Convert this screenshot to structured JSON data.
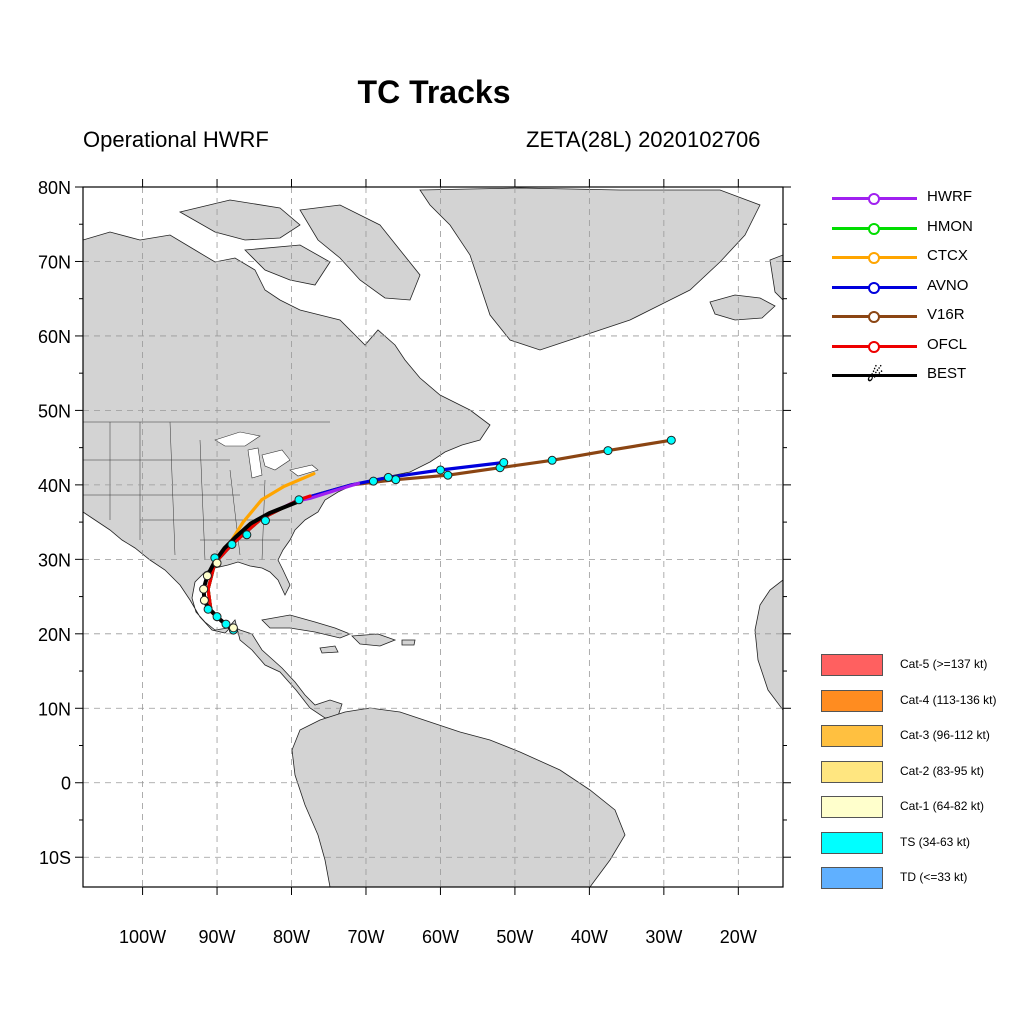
{
  "title": "TC Tracks",
  "subtitle_left": "Operational HWRF",
  "subtitle_right": "ZETA(28L) 2020102706",
  "axes": {
    "lat_labels": [
      "80N",
      "70N",
      "60N",
      "50N",
      "40N",
      "30N",
      "20N",
      "10N",
      "0",
      "10S"
    ],
    "lon_labels": [
      "100W",
      "90W",
      "80W",
      "70W",
      "60W",
      "50W",
      "40W",
      "30W",
      "20W"
    ],
    "lat_range": [
      -14,
      80
    ],
    "lon_range": [
      -108,
      -14
    ],
    "grid": true
  },
  "track_legend": [
    {
      "label": "HWRF",
      "color": "#a020f0"
    },
    {
      "label": "HMON",
      "color": "#00dd00"
    },
    {
      "label": "CTCX",
      "color": "#ffa500"
    },
    {
      "label": "AVNO",
      "color": "#0000dd"
    },
    {
      "label": "V16R",
      "color": "#8b4513"
    },
    {
      "label": "OFCL",
      "color": "#ee0000"
    },
    {
      "label": "BEST",
      "color": "#000000"
    }
  ],
  "intensity_legend": [
    {
      "label": "Cat-5 (>=137 kt)",
      "color": "#ff6060"
    },
    {
      "label": "Cat-4 (113-136 kt)",
      "color": "#ff8c20"
    },
    {
      "label": "Cat-3 (96-112 kt)",
      "color": "#ffc040"
    },
    {
      "label": "Cat-2 (83-95 kt)",
      "color": "#ffe680"
    },
    {
      "label": "Cat-1 (64-82 kt)",
      "color": "#ffffcc"
    },
    {
      "label": "TS (34-63 kt)",
      "color": "#00ffff"
    },
    {
      "label": "TD (<=33 kt)",
      "color": "#60b0ff"
    }
  ],
  "tracks": {
    "V16R": [
      [
        -88.5,
        21.0
      ],
      [
        -90.8,
        23.0
      ],
      [
        -91.2,
        26.0
      ],
      [
        -90.3,
        29.5
      ],
      [
        -88.0,
        32.0
      ],
      [
        -84.0,
        35.5
      ],
      [
        -79.0,
        38.0
      ],
      [
        -72.0,
        40.0
      ],
      [
        -66.0,
        40.7
      ],
      [
        -59.0,
        41.3
      ],
      [
        -52.0,
        42.3
      ],
      [
        -45.0,
        43.3
      ],
      [
        -37.5,
        44.6
      ],
      [
        -29.0,
        46.0
      ]
    ],
    "AVNO": [
      [
        -88.5,
        21.0
      ],
      [
        -90.8,
        23.0
      ],
      [
        -91.2,
        26.0
      ],
      [
        -90.3,
        29.5
      ],
      [
        -88.0,
        32.0
      ],
      [
        -84.0,
        35.5
      ],
      [
        -79.0,
        38.0
      ],
      [
        -72.0,
        40.0
      ],
      [
        -67.0,
        41.0
      ],
      [
        -60.0,
        42.0
      ],
      [
        -51.5,
        43.0
      ]
    ],
    "HWRF": [
      [
        -88.5,
        21.0
      ],
      [
        -90.8,
        23.0
      ],
      [
        -91.2,
        26.0
      ],
      [
        -90.3,
        29.5
      ],
      [
        -88.0,
        32.0
      ],
      [
        -84.0,
        35.5
      ],
      [
        -79.5,
        37.8
      ],
      [
        -77.5,
        38.2
      ],
      [
        -74.0,
        39.3
      ],
      [
        -71.0,
        40.2
      ]
    ],
    "CTCX": [
      [
        -88.5,
        21.0
      ],
      [
        -90.8,
        23.0
      ],
      [
        -91.2,
        26.0
      ],
      [
        -90.3,
        29.5
      ],
      [
        -88.5,
        31.8
      ],
      [
        -86.5,
        35.0
      ],
      [
        -84.0,
        38.0
      ],
      [
        -81.0,
        39.8
      ],
      [
        -77.0,
        41.5
      ]
    ],
    "OFCL": [
      [
        -88.5,
        21.0
      ],
      [
        -90.8,
        23.0
      ],
      [
        -91.2,
        26.0
      ],
      [
        -90.3,
        29.5
      ],
      [
        -88.0,
        32.0
      ],
      [
        -84.0,
        35.5
      ],
      [
        -79.0,
        38.0
      ],
      [
        -77.5,
        38.5
      ]
    ],
    "HMON": [
      [
        -88.5,
        21.0
      ],
      [
        -90.8,
        23.0
      ],
      [
        -91.2,
        26.0
      ],
      [
        -90.3,
        29.5
      ],
      [
        -88.0,
        32.0
      ],
      [
        -84.0,
        35.5
      ],
      [
        -79.0,
        38.0
      ]
    ],
    "BEST": [
      [
        -87.8,
        20.5
      ],
      [
        -88.8,
        21.2
      ],
      [
        -90.0,
        22.3
      ],
      [
        -91.2,
        23.5
      ],
      [
        -91.7,
        24.5
      ],
      [
        -91.8,
        26.0
      ],
      [
        -91.3,
        27.8
      ],
      [
        -90.3,
        29.7
      ],
      [
        -89.0,
        31.5
      ],
      [
        -87.5,
        33.0
      ],
      [
        -85.5,
        34.8
      ],
      [
        -83.0,
        36.2
      ],
      [
        -79.0,
        37.8
      ]
    ]
  },
  "cyan_markers": [
    [
      -29.0,
      46.0
    ],
    [
      -37.5,
      44.6
    ],
    [
      -45.0,
      43.3
    ],
    [
      -52.0,
      42.3
    ],
    [
      -59.0,
      41.3
    ],
    [
      -66.0,
      40.7
    ],
    [
      -51.5,
      43.0
    ],
    [
      -60.0,
      42.0
    ],
    [
      -67.0,
      41.0
    ],
    [
      -69.0,
      40.5
    ],
    [
      -79.0,
      38.0
    ],
    [
      -83.5,
      35.2
    ],
    [
      -86.0,
      33.3
    ],
    [
      -88.0,
      32.0
    ],
    [
      -90.3,
      30.2
    ],
    [
      -90.0,
      22.3
    ],
    [
      -91.2,
      23.3
    ],
    [
      -88.8,
      21.3
    ],
    [
      -87.8,
      20.5
    ]
  ],
  "yellow_markers": [
    [
      -91.3,
      27.8
    ],
    [
      -91.8,
      26.0
    ],
    [
      -91.7,
      24.5
    ],
    [
      -90.0,
      29.5
    ],
    [
      -87.8,
      20.8
    ]
  ]
}
